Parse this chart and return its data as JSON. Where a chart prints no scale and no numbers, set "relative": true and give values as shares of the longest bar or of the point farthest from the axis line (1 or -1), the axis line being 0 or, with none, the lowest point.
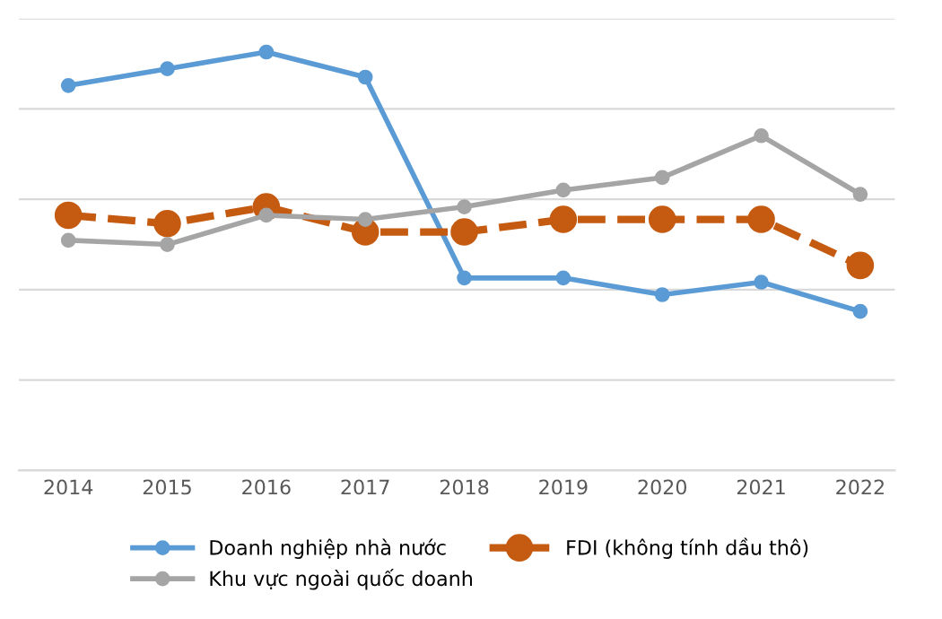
{
  "chart_data": {
    "type": "line",
    "relative": true,
    "grid": "y",
    "legend": "bottom",
    "marker": "circle",
    "line_style": "solid",
    "categories": [
      "2014",
      "2015",
      "2016",
      "2017",
      "2018",
      "2019",
      "2020",
      "2021",
      "2022"
    ],
    "series": [
      {
        "name": "Doanh nghiệp nhà nước",
        "color": "#5b9bd5",
        "values": [
          0.92,
          0.96,
          1,
          0.94,
          0.46,
          0.46,
          0.42,
          0.45,
          0.38
        ]
      },
      {
        "name": "FDI (không tính dầu thô)",
        "color": "#c55a11",
        "line_style": "dashed",
        "values": [
          0.61,
          0.59,
          0.63,
          0.57,
          0.57,
          0.6,
          0.6,
          0.6,
          0.49
        ]
      },
      {
        "name": "Khu vực ngoài quốc doanh",
        "color": "#a5a5a5",
        "values": [
          0.55,
          0.54,
          0.61,
          0.6,
          0.63,
          0.67,
          0.7,
          0.8,
          0.66
        ]
      }
    ]
  }
}
